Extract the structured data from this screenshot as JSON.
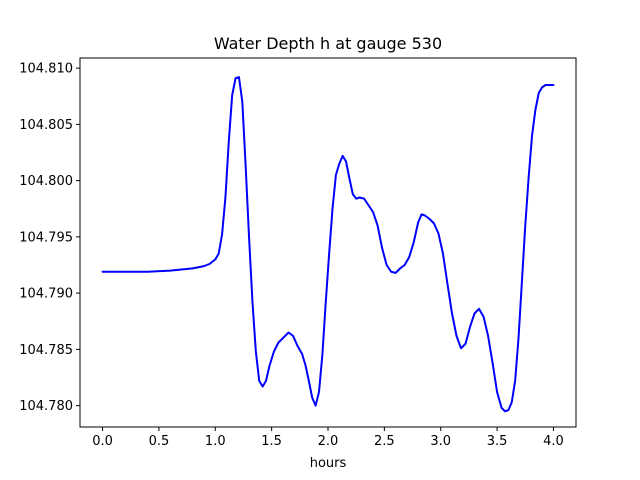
{
  "chart_data": {
    "type": "line",
    "title": "Water Depth h at gauge 530",
    "xlabel": "hours",
    "ylabel": "",
    "xlim": [
      -0.2,
      4.2
    ],
    "ylim": [
      104.7781,
      104.8109
    ],
    "grid": false,
    "x_ticks": [
      0.0,
      0.5,
      1.0,
      1.5,
      2.0,
      2.5,
      3.0,
      3.5,
      4.0
    ],
    "x_tick_labels": [
      "0.0",
      "0.5",
      "1.0",
      "1.5",
      "2.0",
      "2.5",
      "3.0",
      "3.5",
      "4.0"
    ],
    "y_ticks": [
      104.78,
      104.785,
      104.79,
      104.795,
      104.8,
      104.805,
      104.81
    ],
    "y_tick_labels": [
      "104.780",
      "104.785",
      "104.790",
      "104.795",
      "104.800",
      "104.805",
      "104.810"
    ],
    "series": [
      {
        "color": "#0000ff",
        "x": [
          0.0,
          0.2,
          0.4,
          0.6,
          0.8,
          0.9,
          0.95,
          1.0,
          1.03,
          1.06,
          1.09,
          1.12,
          1.15,
          1.18,
          1.21,
          1.24,
          1.27,
          1.3,
          1.33,
          1.36,
          1.39,
          1.42,
          1.45,
          1.48,
          1.52,
          1.56,
          1.6,
          1.65,
          1.69,
          1.73,
          1.77,
          1.8,
          1.83,
          1.86,
          1.89,
          1.92,
          1.95,
          1.98,
          2.01,
          2.04,
          2.07,
          2.1,
          2.13,
          2.16,
          2.19,
          2.22,
          2.25,
          2.28,
          2.32,
          2.36,
          2.4,
          2.44,
          2.48,
          2.52,
          2.56,
          2.6,
          2.64,
          2.68,
          2.72,
          2.76,
          2.8,
          2.83,
          2.86,
          2.9,
          2.94,
          2.98,
          3.02,
          3.06,
          3.1,
          3.14,
          3.18,
          3.22,
          3.26,
          3.3,
          3.34,
          3.38,
          3.42,
          3.46,
          3.5,
          3.54,
          3.57,
          3.6,
          3.63,
          3.66,
          3.69,
          3.72,
          3.75,
          3.78,
          3.81,
          3.84,
          3.87,
          3.9,
          3.93,
          3.96,
          4.0
        ],
        "y": [
          104.7919,
          104.7919,
          104.7919,
          104.792,
          104.7922,
          104.7924,
          104.7926,
          104.793,
          104.7935,
          104.7952,
          104.7985,
          104.8035,
          104.8076,
          104.8091,
          104.8092,
          104.807,
          104.8012,
          104.7949,
          104.7892,
          104.7848,
          104.7822,
          104.7817,
          104.7822,
          104.7835,
          104.7848,
          104.7856,
          104.786,
          104.7865,
          104.7862,
          104.7853,
          104.7846,
          104.7836,
          104.7822,
          104.7807,
          104.78,
          104.7812,
          104.7845,
          104.7892,
          104.7935,
          104.7975,
          104.8005,
          104.8015,
          104.8022,
          104.8017,
          104.8002,
          104.7988,
          104.7984,
          104.7985,
          104.7984,
          104.7978,
          104.7972,
          104.796,
          104.794,
          104.7925,
          104.7919,
          104.7918,
          104.7922,
          104.7925,
          104.7932,
          104.7945,
          104.7963,
          104.797,
          104.7969,
          104.7966,
          104.7962,
          104.7953,
          104.7935,
          104.7908,
          104.7882,
          104.7862,
          104.7851,
          104.7855,
          104.787,
          104.7882,
          104.7886,
          104.7879,
          104.7862,
          104.7838,
          104.7812,
          104.7798,
          104.7795,
          104.7796,
          104.7803,
          104.7822,
          104.786,
          104.791,
          104.796,
          104.8003,
          104.804,
          104.8063,
          104.8078,
          104.8083,
          104.8085,
          104.8085,
          104.8085
        ]
      }
    ]
  }
}
